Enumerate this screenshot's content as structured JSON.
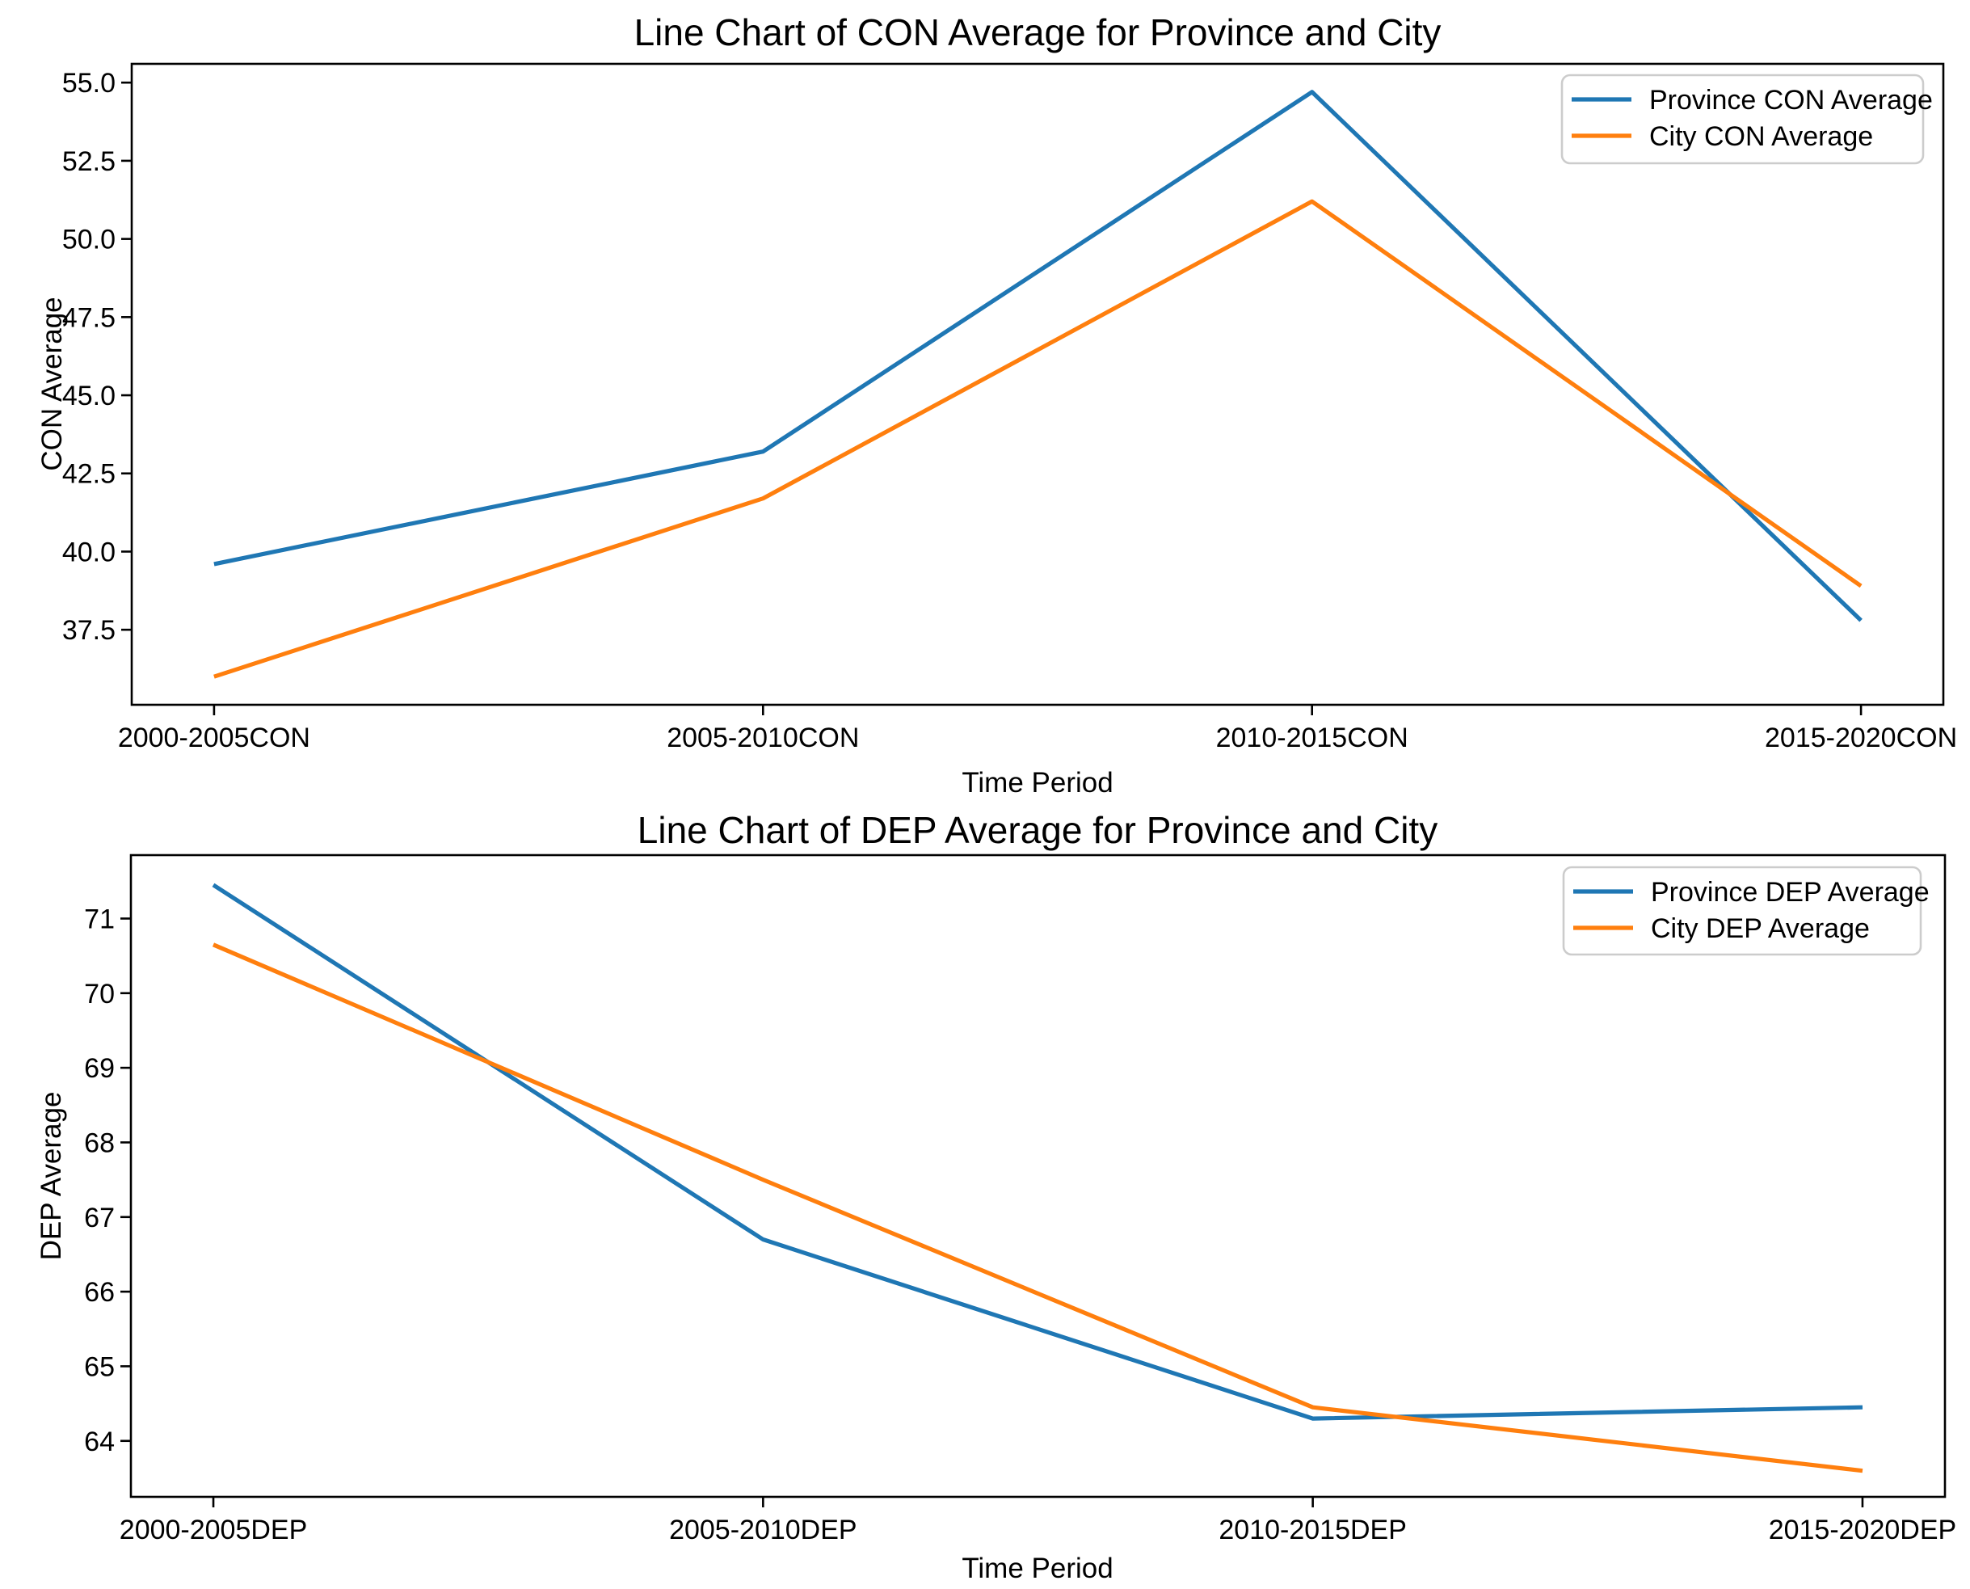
{
  "figure": {
    "background": "#ffffff",
    "axis_color": "#000000",
    "legend_border_color": "#cccccc",
    "legend_background": "#ffffff"
  },
  "chart_data": [
    {
      "type": "line",
      "title": "Line Chart of CON Average for Province and City",
      "xlabel": "Time Period",
      "ylabel": "CON Average",
      "categories": [
        "2000-2005CON",
        "2005-2010CON",
        "2010-2015CON",
        "2015-2020CON"
      ],
      "series": [
        {
          "name": "Province CON Average",
          "color": "#1f77b4",
          "values": [
            39.6,
            43.2,
            54.7,
            37.8
          ]
        },
        {
          "name": "City CON Average",
          "color": "#ff7f0e",
          "values": [
            36.0,
            41.7,
            51.2,
            38.9
          ]
        }
      ],
      "ylim": [
        35.1,
        55.6
      ],
      "yticks": [
        {
          "v": 37.5,
          "label": "37.5"
        },
        {
          "v": 40.0,
          "label": "40.0"
        },
        {
          "v": 42.5,
          "label": "42.5"
        },
        {
          "v": 45.0,
          "label": "45.0"
        },
        {
          "v": 47.5,
          "label": "47.5"
        },
        {
          "v": 50.0,
          "label": "50.0"
        },
        {
          "v": 52.5,
          "label": "52.5"
        },
        {
          "v": 55.0,
          "label": "55.0"
        }
      ],
      "legend_position": "upper right",
      "grid": false
    },
    {
      "type": "line",
      "title": "Line Chart of DEP Average for Province and City",
      "xlabel": "Time Period",
      "ylabel": "DEP Average",
      "categories": [
        "2000-2005DEP",
        "2005-2010DEP",
        "2010-2015DEP",
        "2015-2020DEP"
      ],
      "series": [
        {
          "name": "Province DEP Average",
          "color": "#1f77b4",
          "values": [
            71.45,
            66.7,
            64.3,
            64.45
          ]
        },
        {
          "name": "City DEP Average",
          "color": "#ff7f0e",
          "values": [
            70.65,
            67.5,
            64.45,
            63.6
          ]
        }
      ],
      "ylim": [
        63.25,
        71.85
      ],
      "yticks": [
        {
          "v": 64,
          "label": "64"
        },
        {
          "v": 65,
          "label": "65"
        },
        {
          "v": 66,
          "label": "66"
        },
        {
          "v": 67,
          "label": "67"
        },
        {
          "v": 68,
          "label": "68"
        },
        {
          "v": 69,
          "label": "69"
        },
        {
          "v": 70,
          "label": "70"
        },
        {
          "v": 71,
          "label": "71"
        }
      ],
      "legend_position": "upper right",
      "grid": false
    }
  ]
}
